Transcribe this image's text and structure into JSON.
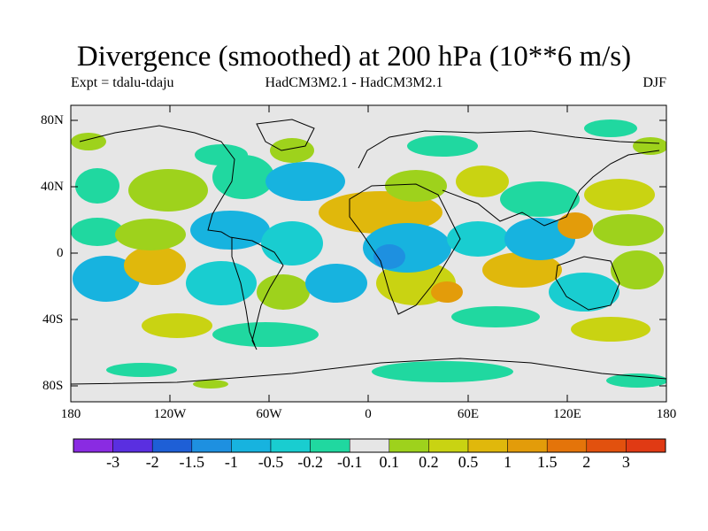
{
  "title": "Divergence (smoothed) at 200 hPa (10**6 m/s)",
  "subtitle_left": "Expt = tdalu-tdaju",
  "subtitle_center": "HadCM3M2.1 - HadCM3M2.1",
  "subtitle_right": "DJF",
  "lat_labels": [
    "80N",
    "40N",
    "0",
    "40S",
    "80S"
  ],
  "lon_labels": [
    "180",
    "120W",
    "60W",
    "0",
    "60E",
    "120E",
    "180"
  ],
  "colorbar": {
    "colors": [
      "#8a2be2",
      "#5a2fe0",
      "#1e5fd6",
      "#1e90e0",
      "#17b3df",
      "#19cdd0",
      "#20d8a0",
      "#e6e6e6",
      "#9ed21c",
      "#c9d312",
      "#e0b80c",
      "#e39c0a",
      "#e4740a",
      "#e2510e",
      "#e03a14",
      "#e00000"
    ],
    "labels": [
      "-3",
      "-2",
      "-1.5",
      "-1",
      "-0.5",
      "-0.2",
      "-0.1",
      "0.1",
      "0.2",
      "0.5",
      "1",
      "1.5",
      "2",
      "3"
    ]
  },
  "map_colors": {
    "background": "#e6e6e6",
    "green_light": "#9ed21c",
    "yellow_green": "#c9d312",
    "orange": "#e0b80c",
    "orange_dark": "#e39c0a",
    "cyan": "#17b3df",
    "teal": "#19cdd0",
    "sea_green": "#20d8a0",
    "blue": "#1e90e0"
  }
}
